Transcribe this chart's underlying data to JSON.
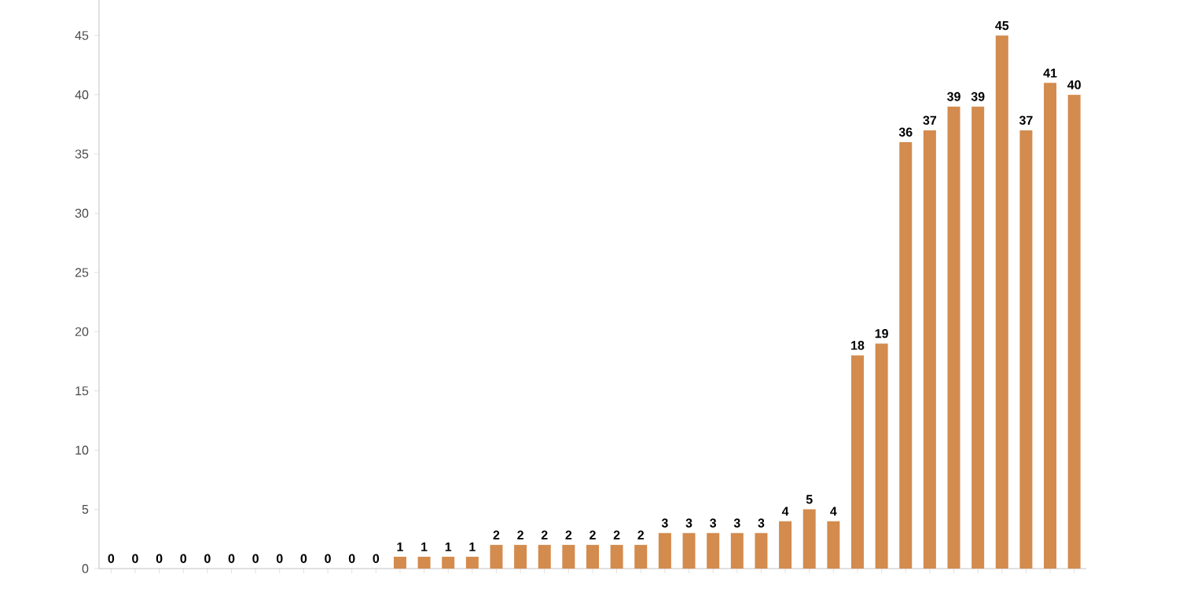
{
  "chart_data": {
    "type": "bar",
    "categories": [
      null,
      null,
      null,
      null,
      null,
      null,
      null,
      null,
      null,
      null,
      null,
      null,
      null,
      null,
      null,
      null,
      null,
      null,
      null,
      null,
      null,
      null,
      null,
      null,
      null,
      null,
      null,
      null,
      null,
      null,
      null,
      null,
      null,
      null,
      null,
      null,
      null,
      null,
      null,
      null,
      null
    ],
    "values": [
      0,
      0,
      0,
      0,
      0,
      0,
      0,
      0,
      0,
      0,
      0,
      0,
      1,
      1,
      1,
      1,
      2,
      2,
      2,
      2,
      2,
      2,
      2,
      3,
      3,
      3,
      3,
      3,
      4,
      5,
      4,
      18,
      19,
      36,
      37,
      39,
      39,
      45,
      37,
      41,
      40
    ],
    "color": "#d38b4e",
    "ylim": [
      0,
      48
    ],
    "yticks": [
      0,
      5,
      10,
      15,
      20,
      25,
      30,
      35,
      40,
      45
    ],
    "data_labels": true,
    "tick_labels": "y"
  }
}
